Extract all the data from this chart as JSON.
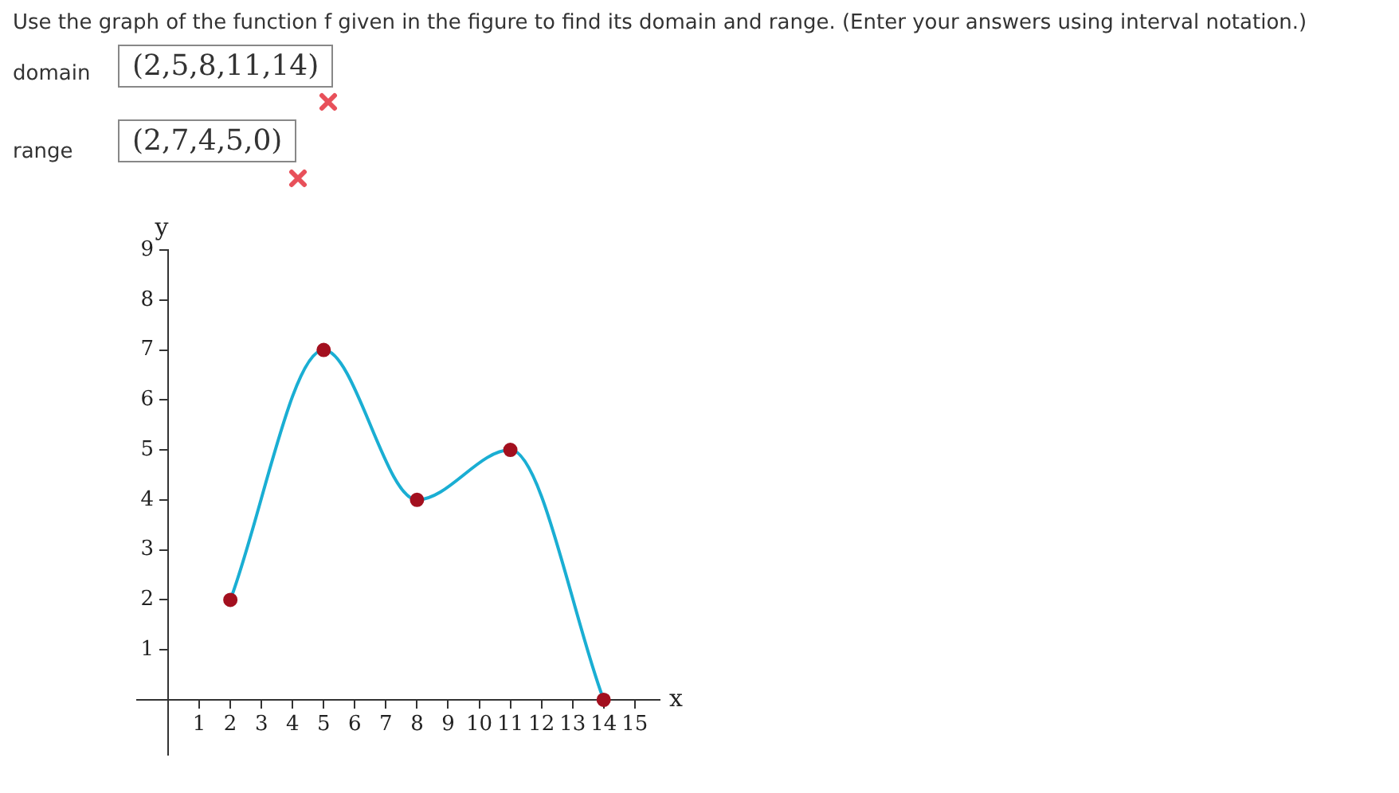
{
  "chart_data": {
    "type": "line",
    "annotations": [
      "Use the graph of the function f given in the figure to find its domain and range. (Enter your answers using interval notation.)",
      "domain",
      "(2,5,8,11,14)",
      "range",
      "(2,7,4,5,0)"
    ],
    "xlabel": "x",
    "ylabel": "y",
    "x": [
      2,
      5,
      8,
      11,
      14
    ],
    "series": [
      {
        "color": "#1aaed3",
        "colors": [
          "#a3101f",
          "#a3101f",
          "#a3101f",
          "#a3101f",
          "#a3101f"
        ],
        "values": [
          2,
          7,
          4,
          5,
          0
        ]
      }
    ],
    "xlim": [
      -1,
      15.8
    ],
    "ylim": [
      -1.1,
      9
    ],
    "xticks": [
      1,
      2,
      3,
      4,
      5,
      6,
      7,
      8,
      9,
      10,
      11,
      12,
      13,
      14,
      15
    ],
    "yticks": [
      1,
      2,
      3,
      4,
      5,
      6,
      7,
      8,
      9
    ],
    "grid": false,
    "legend": false,
    "marker": "circle",
    "line_style": "solid"
  }
}
